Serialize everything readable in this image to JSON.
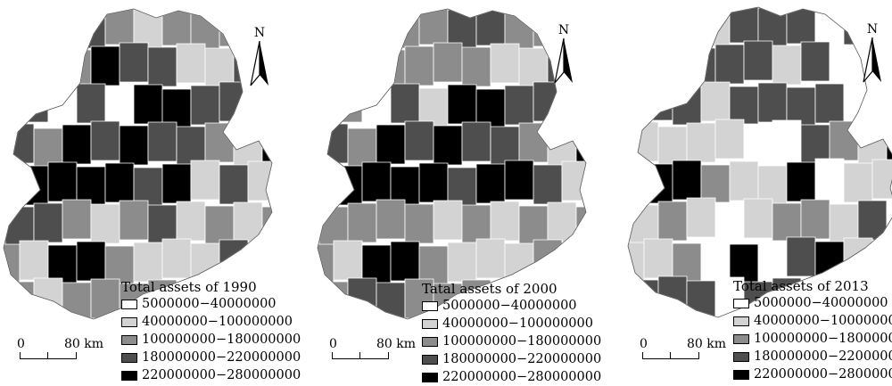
{
  "legend_classes": [
    {
      "label": "5000000−40000000",
      "color": "#ffffff"
    },
    {
      "label": "40000000−100000000",
      "color": "#d3d3d3"
    },
    {
      "label": "100000000−180000000",
      "color": "#8c8c8c"
    },
    {
      "label": "180000000−220000000",
      "color": "#4e4e4e"
    },
    {
      "label": "220000000−280000000",
      "color": "#000000"
    }
  ],
  "panels": [
    {
      "title": "Total assets of 1990",
      "north_label": "N",
      "scale": {
        "zero": "0",
        "distance": "80 km"
      }
    },
    {
      "title": "Tatal assets of 2000",
      "north_label": "N",
      "scale": {
        "zero": "0",
        "distance": "80 km"
      }
    },
    {
      "title": "Total assets of 2013",
      "north_label": "N",
      "scale": {
        "zero": "0",
        "distance": "80 km"
      }
    }
  ],
  "map_data": {
    "type": "choropleth",
    "value_field": "Total assets",
    "years": [
      "1990",
      "2000",
      "2013"
    ],
    "regions_class_by_year": [
      [
        3,
        2,
        1,
        2,
        2,
        2,
        2,
        4,
        3,
        3,
        1,
        1,
        3,
        3,
        0,
        3,
        0,
        4,
        4,
        3,
        3,
        3,
        2,
        4,
        3,
        4,
        3,
        3,
        2,
        1,
        4,
        4,
        4,
        4,
        4,
        3,
        4,
        1,
        3,
        1,
        3,
        3,
        2,
        1,
        2,
        3,
        1,
        2,
        1,
        2,
        2,
        1,
        4,
        4,
        2,
        1,
        1,
        1
      ],
      [
        2,
        2,
        3,
        3,
        2,
        2,
        2,
        2,
        2,
        2,
        1,
        1,
        3,
        2,
        0,
        3,
        1,
        4,
        4,
        3,
        3,
        3,
        2,
        4,
        3,
        4,
        3,
        3,
        2,
        1,
        4,
        4,
        4,
        4,
        4,
        3,
        4,
        4,
        3,
        1,
        2,
        2,
        2,
        2,
        1,
        2,
        1,
        2,
        1,
        2,
        2,
        1,
        4,
        4,
        2,
        1,
        1,
        1
      ],
      [
        1,
        3,
        3,
        3,
        0,
        3,
        3,
        3,
        3,
        1,
        3,
        0,
        0,
        3,
        3,
        1,
        3,
        3,
        3,
        3,
        0,
        1,
        1,
        1,
        1,
        0,
        0,
        3,
        2,
        1,
        4,
        4,
        4,
        2,
        1,
        1,
        4,
        0,
        1,
        1,
        1,
        2,
        1,
        0,
        1,
        2,
        2,
        1,
        3,
        0,
        1,
        1,
        2,
        0,
        4,
        0,
        3,
        4
      ]
    ]
  }
}
